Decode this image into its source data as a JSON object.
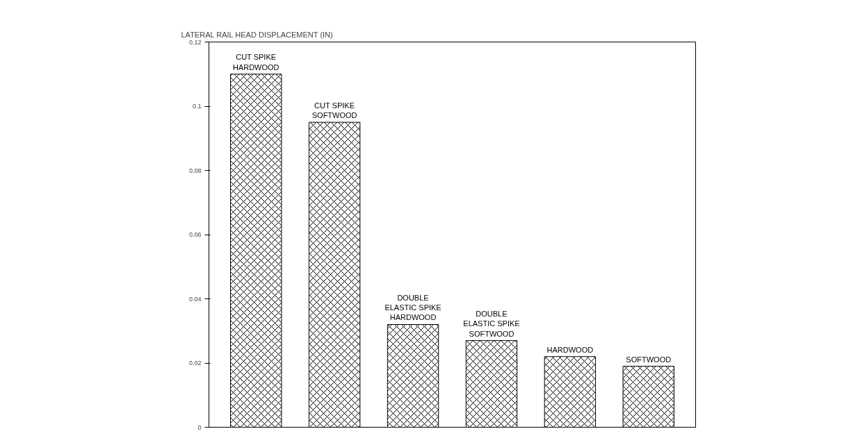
{
  "chart_data": {
    "type": "bar",
    "ylabel": "LATERAL RAIL HEAD DISPLACEMENT (IN)",
    "categories": [
      "CUT SPIKE\nHARDWOOD",
      "CUT SPIKE\nSOFTWOOD",
      "DOUBLE\nELASTIC SPIKE\nHARDWOOD",
      "DOUBLE\nELASTIC SPIKE\nSOFTWOOD",
      "HARDWOOD",
      "SOFTWOOD"
    ],
    "values": [
      0.11,
      0.095,
      0.032,
      0.027,
      0.022,
      0.019
    ],
    "color": "#000000",
    "ylim": [
      0,
      0.12
    ],
    "yticks": [
      0,
      {
        "value": 0.02,
        "label": "0.02"
      },
      {
        "value": 0.04,
        "label": "0.04"
      },
      {
        "value": 0.06,
        "label": "0.06"
      },
      {
        "value": 0.08,
        "label": "0.08"
      },
      {
        "value": 0.1,
        "label": "0.1"
      },
      {
        "value": 0.12,
        "label": "0.12"
      }
    ],
    "tick_labels": "y",
    "grid": false
  }
}
